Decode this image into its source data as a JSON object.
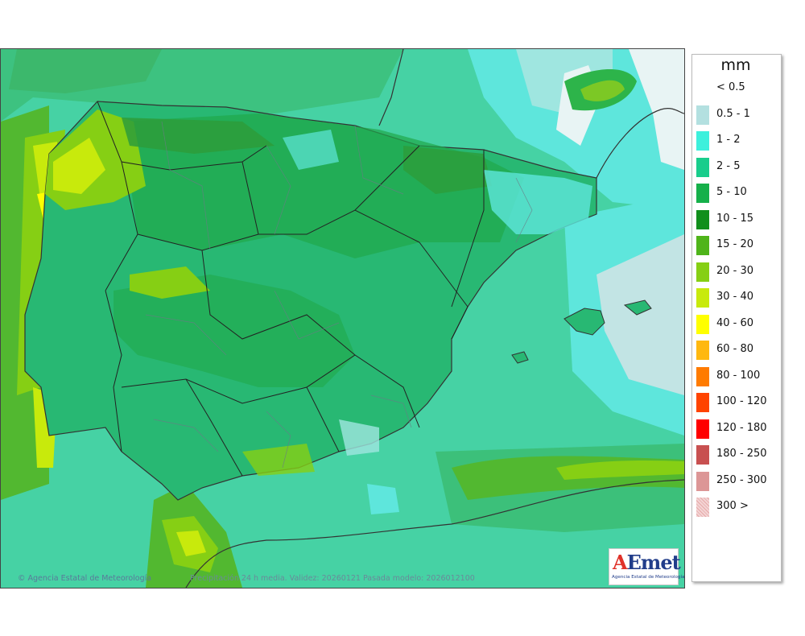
{
  "legend": {
    "unit": "mm",
    "items": [
      {
        "label": "< 0.5",
        "color": "#ffffff"
      },
      {
        "label": "0.5 - 1",
        "color": "#b3e0e0"
      },
      {
        "label": "1 - 2",
        "color": "#3df0dc"
      },
      {
        "label": "2 - 5",
        "color": "#19cd8c"
      },
      {
        "label": "5 - 10",
        "color": "#16b04a"
      },
      {
        "label": "10 - 15",
        "color": "#118f1c"
      },
      {
        "label": "15 - 20",
        "color": "#4fb41a"
      },
      {
        "label": "20 - 30",
        "color": "#86cf14"
      },
      {
        "label": "30 - 40",
        "color": "#c8ea0c"
      },
      {
        "label": "40 - 60",
        "color": "#ffff00"
      },
      {
        "label": "60 - 80",
        "color": "#ffb80f"
      },
      {
        "label": "80 - 100",
        "color": "#ff7b00"
      },
      {
        "label": "100 - 120",
        "color": "#ff4300"
      },
      {
        "label": "120 - 180",
        "color": "#ff0000"
      },
      {
        "label": "180 - 250",
        "color": "#c85050"
      },
      {
        "label": "250 - 300",
        "color": "#dc9696"
      },
      {
        "label": "300 >",
        "color": "#f3d4d4"
      }
    ]
  },
  "credits": {
    "agency": "Agencia Estatal de Meteorología",
    "caption": "Precipitación 24 h media. Validez: 20260121 Pasada modelo: 2026012100"
  },
  "logo": {
    "word_a": "A",
    "word_rest": "Emet",
    "subtitle": "Agencia Estatal de Meteorología"
  }
}
